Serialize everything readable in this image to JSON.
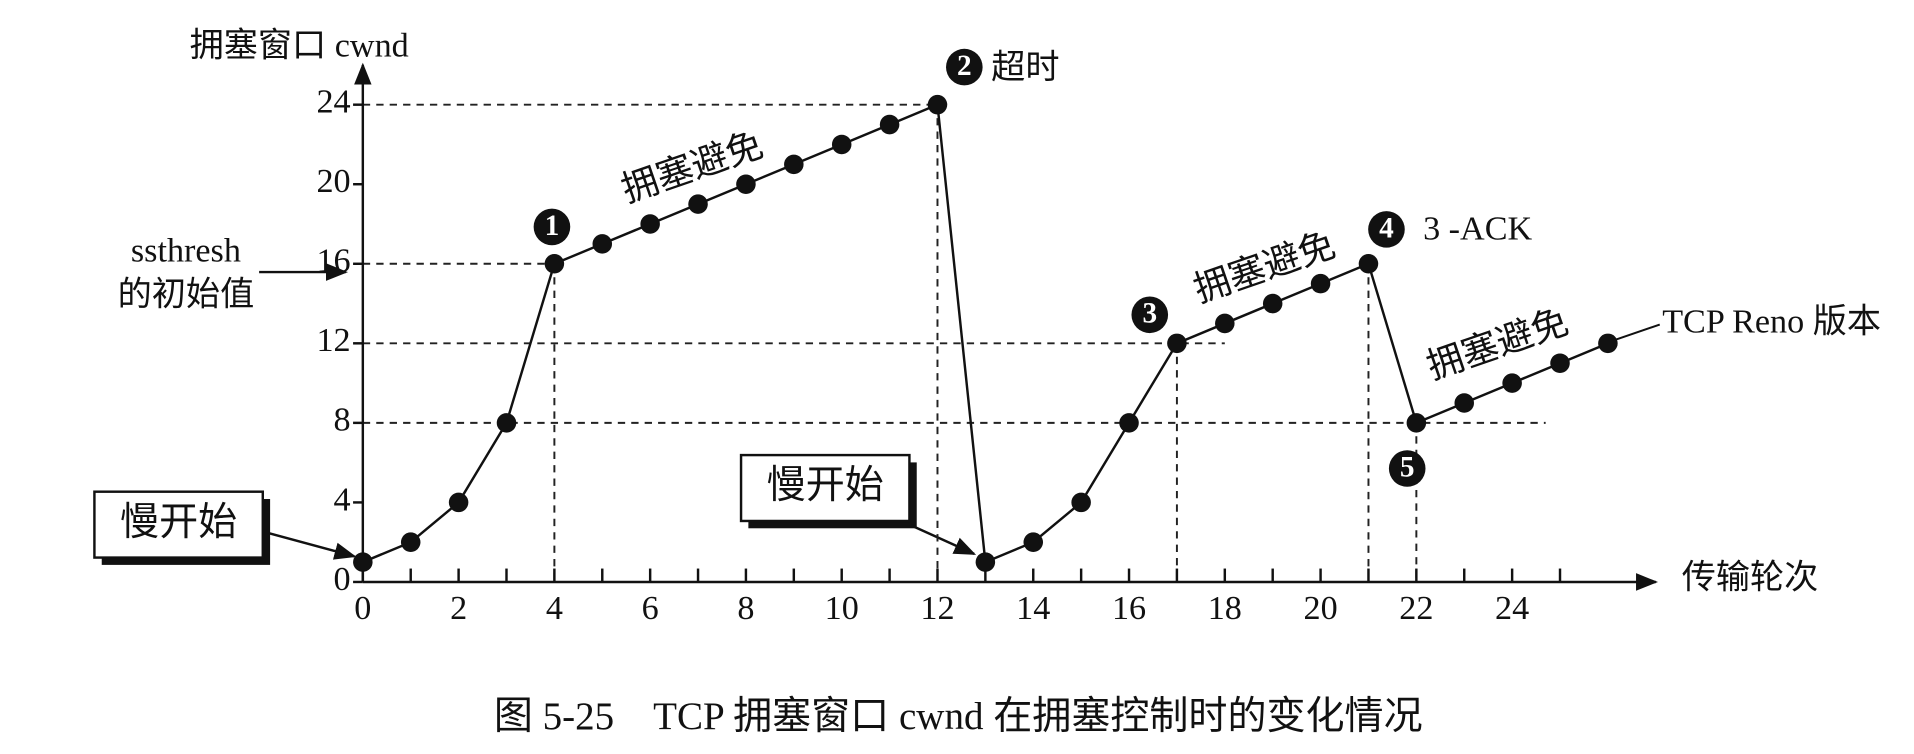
{
  "chart_data": {
    "type": "line",
    "title": "图 5-25　TCP 拥塞窗口 cwnd 在拥塞控制时的变化情况",
    "y_label": "拥塞窗口  cwnd",
    "x_label": "传输轮次",
    "x": [
      0,
      1,
      2,
      3,
      4,
      5,
      6,
      7,
      8,
      9,
      10,
      11,
      12,
      13,
      14,
      15,
      16,
      17,
      18,
      19,
      20,
      21,
      22,
      23,
      24,
      25,
      26
    ],
    "values": [
      1,
      2,
      4,
      8,
      16,
      17,
      18,
      19,
      20,
      21,
      22,
      23,
      24,
      1,
      2,
      4,
      8,
      12,
      13,
      14,
      15,
      16,
      8,
      9,
      10,
      11,
      12
    ],
    "color": "#111111",
    "xlim": [
      0,
      27
    ],
    "ylim": [
      0,
      26
    ],
    "xticks": [
      0,
      2,
      4,
      6,
      8,
      10,
      12,
      14,
      16,
      18,
      20,
      22,
      24
    ],
    "xticks_minor": [
      1,
      3,
      5,
      7,
      9,
      11,
      13,
      15,
      17,
      19,
      21,
      23,
      25
    ],
    "yticks": [
      0,
      4,
      8,
      12,
      16,
      20,
      24
    ],
    "hlines": [
      {
        "y": 24,
        "x_end": 12
      },
      {
        "y": 16,
        "x_end": 4
      },
      {
        "y": 12,
        "x_end": 18
      },
      {
        "y": 8,
        "x_end": 24.7
      }
    ],
    "vlines": [
      4,
      12,
      17,
      21,
      22
    ],
    "events": [
      {
        "marker": "1"
      },
      {
        "marker": "2",
        "text": "超时"
      },
      {
        "marker": "3"
      },
      {
        "marker": "4",
        "text": "3 -ACK"
      },
      {
        "marker": "5"
      }
    ],
    "phases": [
      "拥塞避免",
      "拥塞避免",
      "拥塞避免"
    ],
    "slow_start": [
      "慢开始",
      "慢开始"
    ],
    "ssthresh_label": [
      "ssthresh",
      "的初始值"
    ],
    "version_label": "TCP Reno 版本"
  }
}
